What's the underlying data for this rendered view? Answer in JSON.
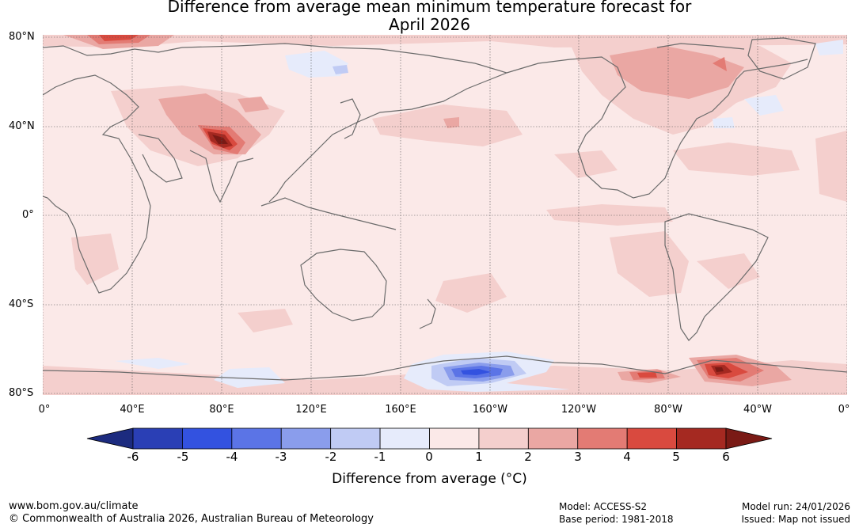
{
  "title_line1": "Difference from average mean minimum temperature forecast for",
  "title_line2": "April 2026",
  "lat_labels": [
    "80°N",
    "40°N",
    "0°",
    "40°S",
    "80°S"
  ],
  "lon_labels": [
    "0°",
    "40°E",
    "80°E",
    "120°E",
    "160°E",
    "160°W",
    "120°W",
    "80°W",
    "40°W",
    "0°"
  ],
  "colorbar": {
    "ticks": [
      "-6",
      "-5",
      "-4",
      "-3",
      "-2",
      "-1",
      "0",
      "1",
      "2",
      "3",
      "4",
      "5",
      "6"
    ],
    "colors": [
      "#1c2b7f",
      "#2a3fb5",
      "#3352e0",
      "#5b74e6",
      "#8a9dec",
      "#c0cbf4",
      "#e6ebfb",
      "#fbe9e8",
      "#f4cfcd",
      "#eaa7a3",
      "#e37b74",
      "#d94a3f",
      "#a52921",
      "#7a1a15"
    ],
    "title": "Difference from average (°C)"
  },
  "footer": {
    "url": "www.bom.gov.au/climate",
    "copyright": "© Commonwealth of Australia 2026, Australian Bureau of Meteorology",
    "model": "Model: ACCESS-S2",
    "base_period": "Base period: 1981-2018",
    "model_run": "Model run: 24/01/2026",
    "issued": "Issued: Map not issued"
  }
}
